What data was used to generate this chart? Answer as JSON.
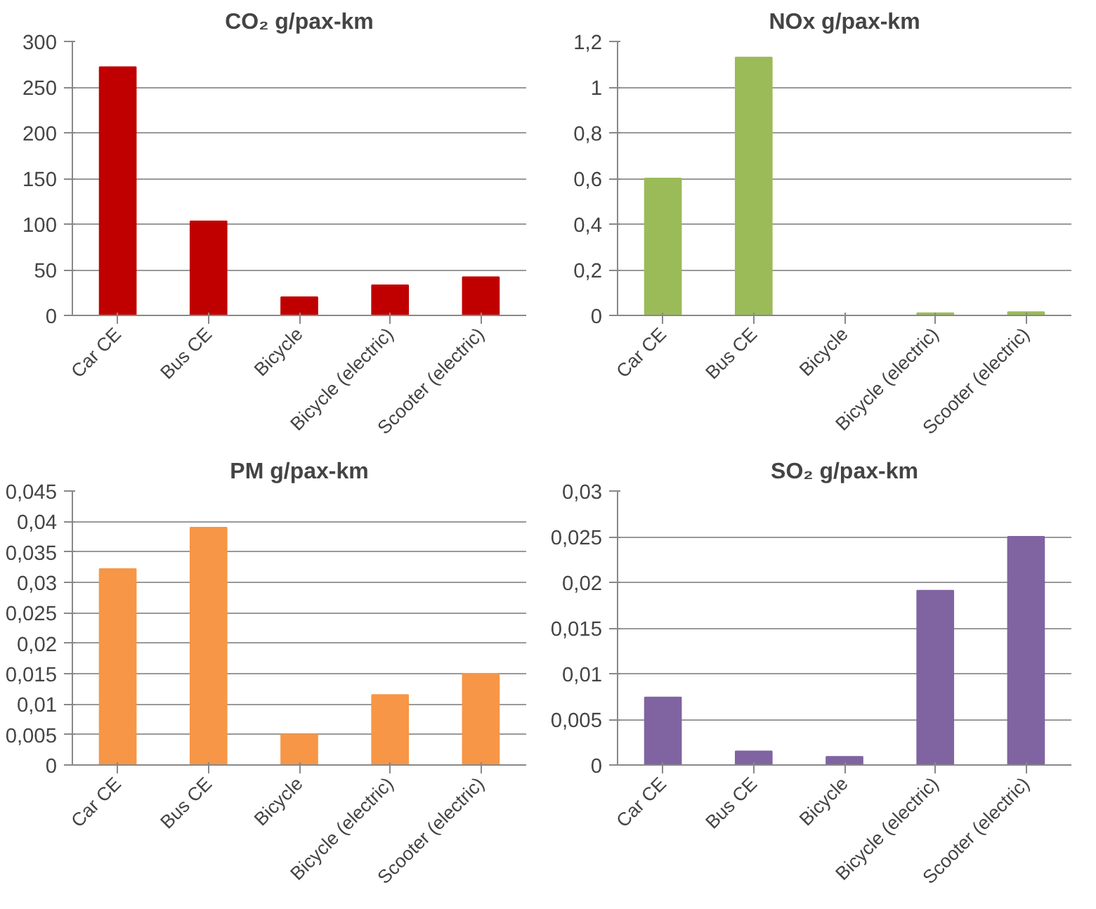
{
  "chart_data": [
    {
      "type": "bar",
      "title": "CO₂ g/pax-km",
      "categories": [
        "Car CE",
        "Bus CE",
        "Bicycle",
        "Bicycle (electric)",
        "Scooter (electric)"
      ],
      "values": [
        272,
        103,
        20,
        33,
        42
      ],
      "color": "#c00000",
      "ylim": [
        0,
        300
      ],
      "yticks": [
        0,
        50,
        100,
        150,
        200,
        250,
        300
      ],
      "grid": "y"
    },
    {
      "type": "bar",
      "title": "NOx g/pax-km",
      "categories": [
        "Car CE",
        "Bus CE",
        "Bicycle",
        "Bicycle (electric)",
        "Scooter (electric)"
      ],
      "values": [
        0.6,
        1.13,
        0,
        0.01,
        0.015
      ],
      "color": "#9bbb59",
      "ylim": [
        0,
        1.2
      ],
      "yticks": [
        0,
        {
          "value": 0.2,
          "label": "0,2"
        },
        {
          "value": 0.4,
          "label": "0,4"
        },
        {
          "value": 0.6,
          "label": "0,6"
        },
        {
          "value": 0.8,
          "label": "0,8"
        },
        1,
        {
          "value": 1.2,
          "label": "1,2"
        }
      ],
      "grid": "y"
    },
    {
      "type": "bar",
      "title": "PM g/pax-km",
      "categories": [
        "Car CE",
        "Bus CE",
        "Bicycle",
        "Bicycle (electric)",
        "Scooter (electric)"
      ],
      "values": [
        0.0322,
        0.039,
        0.005,
        0.0115,
        0.015
      ],
      "color": "#f79646",
      "ylim": [
        0,
        0.045
      ],
      "yticks": [
        0,
        {
          "value": 0.005,
          "label": "0,005"
        },
        {
          "value": 0.01,
          "label": "0,01"
        },
        {
          "value": 0.015,
          "label": "0,015"
        },
        {
          "value": 0.02,
          "label": "0,02"
        },
        {
          "value": 0.025,
          "label": "0,025"
        },
        {
          "value": 0.03,
          "label": "0,03"
        },
        {
          "value": 0.035,
          "label": "0,035"
        },
        {
          "value": 0.04,
          "label": "0,04"
        },
        {
          "value": 0.045,
          "label": "0,045"
        }
      ],
      "grid": "y"
    },
    {
      "type": "bar",
      "title": "SO₂ g/pax-km",
      "categories": [
        "Car CE",
        "Bus CE",
        "Bicycle",
        "Bicycle (electric)",
        "Scooter (electric)"
      ],
      "values": [
        0.0074,
        0.0015,
        0.0009,
        0.0191,
        0.025
      ],
      "color": "#8064a2",
      "ylim": [
        0,
        0.03
      ],
      "yticks": [
        0,
        {
          "value": 0.005,
          "label": "0,005"
        },
        {
          "value": 0.01,
          "label": "0,01"
        },
        {
          "value": 0.015,
          "label": "0,015"
        },
        {
          "value": 0.02,
          "label": "0,02"
        },
        {
          "value": 0.025,
          "label": "0,025"
        },
        {
          "value": 0.03,
          "label": "0,03"
        }
      ],
      "grid": "y"
    }
  ]
}
